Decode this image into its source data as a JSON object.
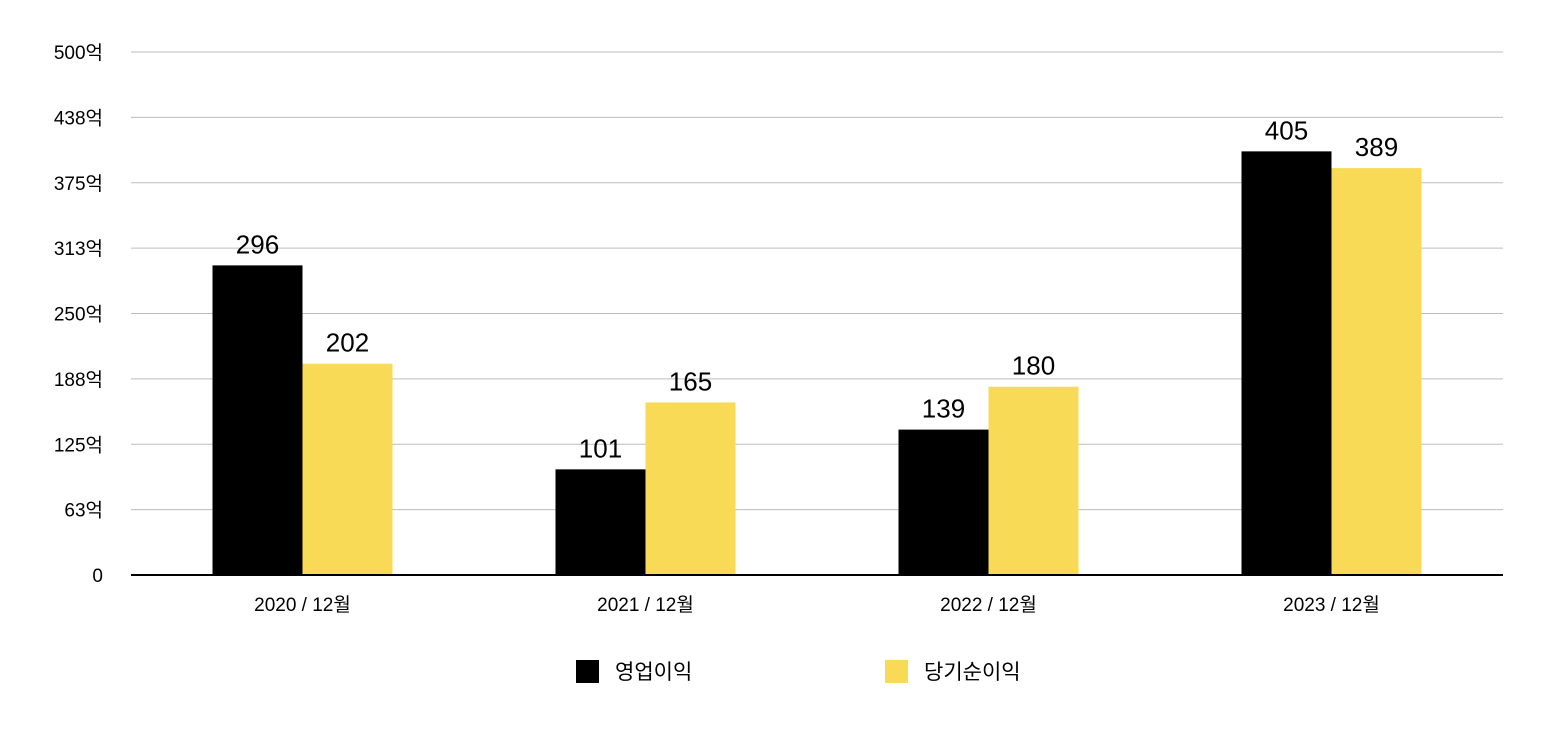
{
  "chart_data": {
    "type": "bar",
    "title": "",
    "xlabel": "",
    "ylabel": "",
    "categories": [
      "2020 / 12월",
      "2021 / 12월",
      "2022 / 12월",
      "2023 / 12월"
    ],
    "series": [
      {
        "name": "영업이익",
        "values": [
          296,
          101,
          139,
          405
        ],
        "color": "#000000"
      },
      {
        "name": "당기순이익",
        "values": [
          202,
          165,
          180,
          389
        ],
        "color": "#F8DA56"
      }
    ],
    "ylim": [
      0,
      500
    ],
    "yticks": [
      0,
      62.5,
      125,
      187.5,
      250,
      312.5,
      375,
      437.5,
      500
    ],
    "ytick_labels": [
      "0",
      "63억",
      "125억",
      "188억",
      "250억",
      "313억",
      "375억",
      "438억",
      "500억"
    ],
    "grid": true,
    "grid_color": "#bdbdbd",
    "axis_color": "#000000",
    "legend_position": "bottom-center",
    "data_labels": true
  }
}
